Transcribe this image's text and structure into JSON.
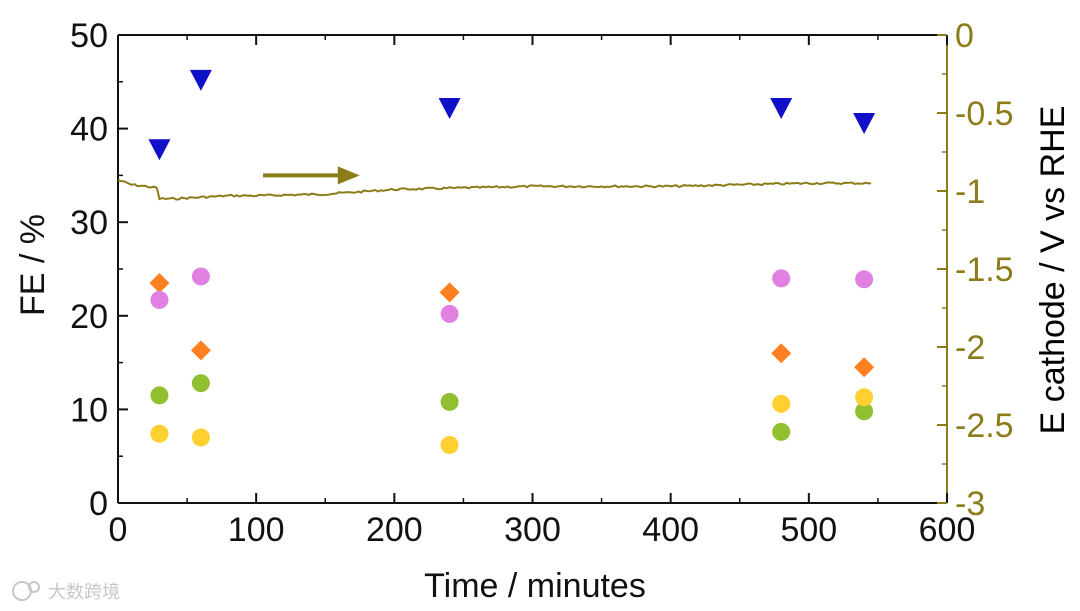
{
  "chart_data": {
    "type": "scatter",
    "title": "",
    "xlabel": "Time / minutes",
    "ylabel": "FE / %",
    "y2label": "E cathode / V vs RHE",
    "xlim": [
      0,
      600
    ],
    "ylim": [
      0,
      50
    ],
    "y2lim": [
      -3,
      0
    ],
    "xticks": [
      "0",
      "100",
      "200",
      "300",
      "400",
      "500",
      "600"
    ],
    "yticks": [
      "0",
      "10",
      "20",
      "30",
      "40",
      "50"
    ],
    "y2ticks": [
      "-3",
      "-2.5",
      "-2",
      "-1.5",
      "-1",
      "-0.5",
      "0"
    ],
    "grid": false,
    "legend": "none",
    "series": [
      {
        "marker": "triangle-down",
        "color": "#1010c8",
        "x": [
          30,
          60,
          240,
          480,
          540
        ],
        "y": [
          37.8,
          45.2,
          42.2,
          42.2,
          40.6
        ]
      },
      {
        "marker": "diamond",
        "color": "#ff8020",
        "x": [
          30,
          60,
          240,
          480,
          540
        ],
        "y": [
          23.5,
          16.3,
          22.5,
          16.0,
          14.5
        ]
      },
      {
        "marker": "circle",
        "color": "#e080e0",
        "x": [
          30,
          60,
          240,
          480,
          540
        ],
        "y": [
          21.7,
          24.2,
          20.2,
          24.0,
          23.9
        ]
      },
      {
        "marker": "circle",
        "color": "#90c030",
        "x": [
          30,
          60,
          240,
          480,
          540
        ],
        "y": [
          11.5,
          12.8,
          10.8,
          7.6,
          9.8
        ]
      },
      {
        "marker": "circle",
        "color": "#ffd030",
        "x": [
          30,
          60,
          240,
          480,
          540
        ],
        "y": [
          7.4,
          7.0,
          6.2,
          10.6,
          11.3
        ]
      },
      {
        "type": "line",
        "axis": "right",
        "color": "#8b7d1a",
        "x": [
          0,
          10,
          20,
          28,
          30,
          40,
          60,
          80,
          100,
          150,
          200,
          250,
          300,
          350,
          400,
          450,
          500,
          545
        ],
        "y": [
          -0.93,
          -0.96,
          -0.97,
          -0.98,
          -1.05,
          -1.05,
          -1.04,
          -1.03,
          -1.03,
          -1.02,
          -0.99,
          -0.98,
          -0.97,
          -0.97,
          -0.97,
          -0.96,
          -0.95,
          -0.95
        ]
      }
    ],
    "annotations": [
      {
        "type": "arrow",
        "direction": "right",
        "color": "#8b7d1a",
        "x": [
          105,
          175
        ],
        "y": 35
      }
    ],
    "colors": {
      "axis": "#111111",
      "right_axis": "#8b7d1a"
    }
  },
  "watermark": {
    "text": "大数跨境"
  }
}
